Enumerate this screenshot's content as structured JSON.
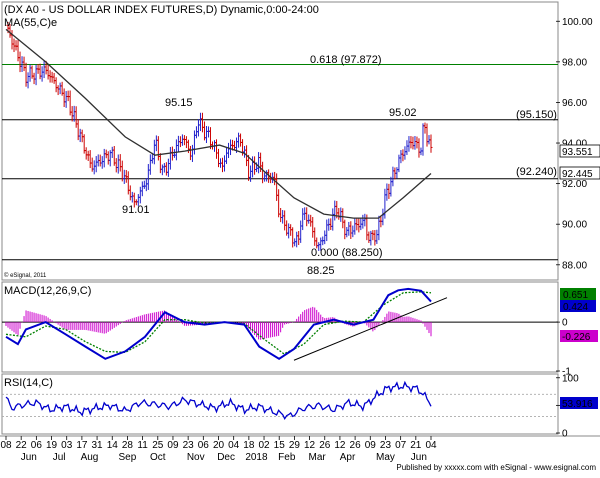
{
  "header": {
    "title": "(DX A0 - US DOLLAR INDEX FUTURES,D) Dynamic,0:00-24:00",
    "ma_label": "MA(55,C)e",
    "copyright": "© eSignal, 2011",
    "footer": "Published by xxxxx.com with eSignal - www.esignal.com"
  },
  "colors": {
    "up_bar": "#2020cc",
    "down_bar": "#cc0000",
    "ma": "#303030",
    "fib": "#008000",
    "macd_line": "#0000cc",
    "signal_line": "#008000",
    "histogram": "#cc00cc",
    "rsi": "#0000cc",
    "trendline": "#000000"
  },
  "chart_data": [
    {
      "type": "candlestick",
      "id": "price",
      "ylim": [
        87.3,
        100.9
      ],
      "y_ticks": [
        "100.00",
        "98.00",
        "96.00",
        "94.00",
        "92.00",
        "90.00",
        "88.00"
      ],
      "tick_values": [
        100,
        98,
        96,
        94,
        92,
        90,
        88
      ],
      "series": [
        {
          "name": "",
          "x": [
            0,
            20,
            40,
            63,
            86,
            105,
            118,
            129,
            142,
            150,
            158,
            167,
            178,
            187,
            193,
            208,
            218,
            222,
            236,
            245,
            254,
            259,
            270,
            275,
            284,
            294,
            297,
            304,
            314,
            333,
            343,
            362,
            364,
            374,
            383,
            397,
            408,
            418,
            421,
            428
          ],
          "y": [
            99.8,
            97.3,
            97.6,
            96.0,
            92.8,
            93.5,
            92.5,
            91.0,
            92.2,
            94.1,
            92.5,
            93.4,
            94.3,
            93.4,
            95.1,
            94.0,
            92.7,
            93.6,
            94.2,
            92.5,
            93.1,
            92.4,
            92.3,
            90.5,
            89.7,
            89.0,
            90.3,
            90.4,
            88.8,
            90.8,
            89.6,
            90.2,
            89.3,
            89.5,
            91.5,
            93.3,
            94.1,
            93.7,
            95.0,
            93.55
          ]
        },
        {
          "name": "MA(55,C)e",
          "x": [
            0,
            40,
            80,
            120,
            150,
            180,
            215,
            240,
            260,
            290,
            320,
            350,
            375,
            400,
            428
          ],
          "y": [
            99.6,
            98.0,
            96.2,
            94.3,
            93.4,
            93.6,
            93.9,
            93.5,
            92.6,
            91.3,
            90.5,
            90.3,
            90.3,
            91.3,
            92.5
          ]
        }
      ],
      "levels": [
        {
          "value": 97.872,
          "label": "0.618 (97.872)"
        },
        {
          "value": 95.15,
          "label": "(95.150)"
        },
        {
          "value": 92.24,
          "label": "(92.240)"
        },
        {
          "value": 88.25,
          "label": "0.000 (88.250)"
        }
      ],
      "annotations": [
        "95.15",
        "91.01",
        "95.02",
        "88.25"
      ],
      "last_price": "93.551",
      "ma_value": "92.445"
    },
    {
      "type": "line",
      "id": "macd",
      "title": "MACD(12,26,9,C)",
      "ylim": [
        -1.0,
        0.8
      ],
      "y_ticks": [
        "0",
        "-1"
      ],
      "tick_values": [
        0,
        -1
      ],
      "series": [
        {
          "name": "",
          "x": [
            0,
            12,
            20,
            40,
            60,
            80,
            100,
            120,
            140,
            160,
            180,
            200,
            220,
            240,
            255,
            275,
            290,
            310,
            330,
            350,
            370,
            385,
            395,
            405,
            418,
            428
          ],
          "y": [
            -0.3,
            -0.45,
            -0.15,
            0.0,
            -0.25,
            -0.5,
            -0.75,
            -0.6,
            -0.3,
            0.2,
            0.0,
            -0.05,
            0.0,
            -0.05,
            -0.5,
            -0.75,
            -0.55,
            -0.05,
            0.05,
            -0.05,
            0.05,
            0.55,
            0.65,
            0.68,
            0.64,
            0.42
          ]
        },
        {
          "name": "Signal",
          "x": [
            0,
            20,
            40,
            60,
            80,
            100,
            120,
            140,
            160,
            180,
            200,
            220,
            240,
            260,
            280,
            300,
            320,
            340,
            360,
            380,
            400,
            418,
            428
          ],
          "y": [
            -0.25,
            -0.3,
            -0.08,
            -0.15,
            -0.4,
            -0.6,
            -0.62,
            -0.4,
            0.05,
            0.05,
            -0.02,
            0.0,
            -0.03,
            -0.35,
            -0.65,
            -0.45,
            -0.05,
            0.02,
            0.0,
            0.35,
            0.6,
            0.62,
            0.6
          ]
        }
      ],
      "values": [
        "0.651",
        "0.424",
        "-0.226"
      ]
    },
    {
      "type": "line",
      "id": "rsi",
      "title": "RSI(14,C)",
      "ylim": [
        0,
        105
      ],
      "y_ticks": [
        "100",
        "50",
        "0"
      ],
      "tick_values": [
        100,
        50,
        0
      ],
      "series": [
        {
          "name": "",
          "x": [
            0,
            5,
            15,
            30,
            45,
            60,
            75,
            90,
            105,
            120,
            135,
            150,
            165,
            180,
            195,
            210,
            225,
            240,
            255,
            270,
            285,
            300,
            315,
            330,
            345,
            360,
            375,
            385,
            400,
            415,
            428
          ],
          "y": [
            65,
            45,
            50,
            55,
            42,
            48,
            38,
            45,
            50,
            40,
            55,
            52,
            48,
            60,
            52,
            45,
            55,
            42,
            48,
            38,
            30,
            45,
            50,
            42,
            55,
            48,
            70,
            82,
            85,
            80,
            53.9
          ]
        }
      ],
      "value": "53.916"
    }
  ],
  "x_axis": {
    "day_labels": [
      "08",
      "22",
      "06",
      "19",
      "03",
      "17",
      "31",
      "14",
      "28",
      "11",
      "25",
      "09",
      "23",
      "06",
      "20",
      "04",
      "18",
      "02",
      "15",
      "29",
      "12",
      "26",
      "12",
      "26",
      "09",
      "23",
      "07",
      "21",
      "04"
    ],
    "month_labels": [
      "Jun",
      "Jul",
      "Aug",
      "Sep",
      "Oct",
      "Nov",
      "Dec",
      "2018",
      "Feb",
      "Mar",
      "Apr",
      "May",
      "Jun"
    ]
  }
}
